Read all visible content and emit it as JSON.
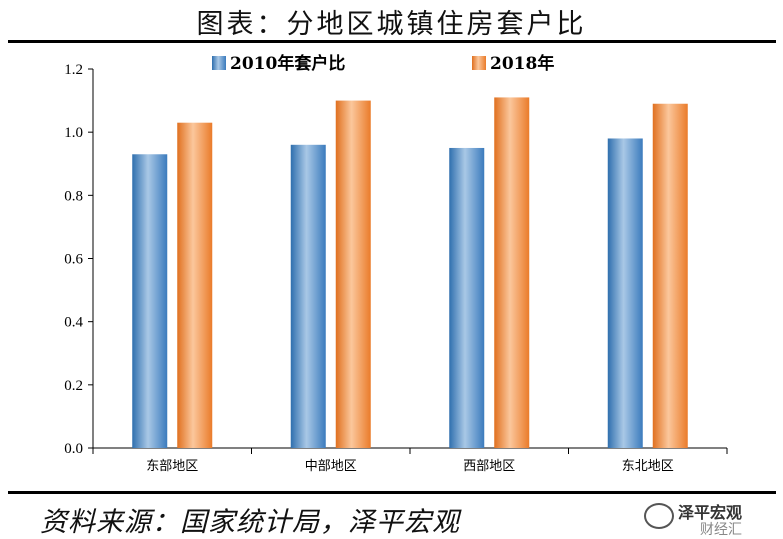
{
  "header": {
    "title": "图表：分地区城镇住房套户比"
  },
  "chart_data": {
    "type": "bar",
    "categories": [
      "东部地区",
      "中部地区",
      "西部地区",
      "东北地区"
    ],
    "series": [
      {
        "name": "2010年套户比",
        "values": [
          0.93,
          0.96,
          0.95,
          0.98
        ],
        "color": "#4a86c5"
      },
      {
        "name": "2018年",
        "values": [
          1.03,
          1.1,
          1.11,
          1.09
        ],
        "color": "#f08a3c"
      }
    ],
    "yticks": [
      "0.0",
      "0.2",
      "0.4",
      "0.6",
      "0.8",
      "1.0",
      "1.2"
    ],
    "ylim": [
      0,
      1.2
    ],
    "legend_position": "top-center",
    "grid": false
  },
  "footer": {
    "source": "资料来源：国家统计局，泽平宏观"
  },
  "watermark": {
    "line1": "泽平宏观",
    "line2": "财经汇"
  }
}
